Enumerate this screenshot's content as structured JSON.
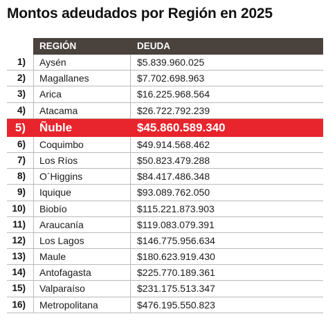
{
  "title": "Montos adeudados por Región en 2025",
  "columns": {
    "region": "REGIÓN",
    "debt": "DEUDA"
  },
  "highlight_color": "#e8242c",
  "header_color": "#4a423d",
  "chart_data": {
    "type": "table",
    "title": "Montos adeudados por Región en 2025",
    "columns": [
      "REGIÓN",
      "DEUDA"
    ],
    "highlight_index": 4,
    "rows": [
      {
        "rank": "1)",
        "region": "Aysén",
        "debt": "$5.839.960.025"
      },
      {
        "rank": "2)",
        "region": "Magallanes",
        "debt": "$7.702.698.963"
      },
      {
        "rank": "3)",
        "region": "Arica",
        "debt": "$16.225.968.564"
      },
      {
        "rank": "4)",
        "region": "Atacama",
        "debt": "$26.722.792.239"
      },
      {
        "rank": "5)",
        "region": "Ñuble",
        "debt": "$45.860.589.340"
      },
      {
        "rank": "6)",
        "region": "Coquimbo",
        "debt": "$49.914.568.462"
      },
      {
        "rank": "7)",
        "region": "Los Ríos",
        "debt": "$50.823.479.288"
      },
      {
        "rank": "8)",
        "region": "O´Higgins",
        "debt": "$84.417.486.348"
      },
      {
        "rank": "9)",
        "region": "Iquique",
        "debt": "$93.089.762.050"
      },
      {
        "rank": "10)",
        "region": "Biobío",
        "debt": "$115.221.873.903"
      },
      {
        "rank": "11)",
        "region": "Araucanía",
        "debt": "$119.083.079.391"
      },
      {
        "rank": "12)",
        "region": "Los Lagos",
        "debt": "$146.775.956.634"
      },
      {
        "rank": "13)",
        "region": "Maule",
        "debt": "$180.623.919.430"
      },
      {
        "rank": "14)",
        "region": "Antofagasta",
        "debt": "$225.770.189.361"
      },
      {
        "rank": "15)",
        "region": "Valparaíso",
        "debt": "$231.175.513.347"
      },
      {
        "rank": "16)",
        "region": "Metropolitana",
        "debt": "$476.195.550.823"
      }
    ]
  }
}
